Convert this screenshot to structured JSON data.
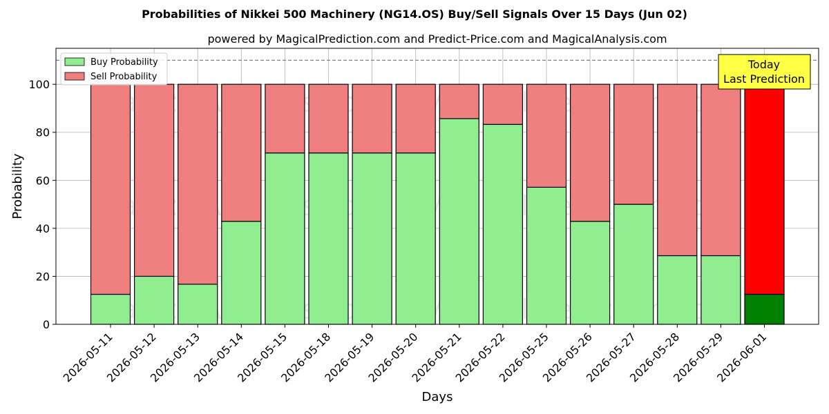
{
  "chart_data": {
    "type": "bar",
    "stacked": true,
    "title": "Probabilities of Nikkei 500 Machinery (NG14.OS) Buy/Sell Signals Over 15 Days (Jun 02)",
    "subtitle": "powered by MagicalPrediction.com and Predict-Price.com and MagicalAnalysis.com",
    "xlabel": "Days",
    "ylabel": "Probability",
    "ylim": [
      0,
      115
    ],
    "yticks": [
      0,
      20,
      40,
      60,
      80,
      100
    ],
    "reference_line": 110,
    "grid": true,
    "legend_position": "top-left",
    "categories": [
      "2026-05-11",
      "2026-05-12",
      "2026-05-13",
      "2026-05-14",
      "2026-05-15",
      "2026-05-18",
      "2026-05-19",
      "2026-05-20",
      "2026-05-21",
      "2026-05-22",
      "2026-05-25",
      "2026-05-26",
      "2026-05-27",
      "2026-05-28",
      "2026-05-29",
      "2026-06-01"
    ],
    "series": [
      {
        "name": "Buy Probability",
        "color": "#90ee90",
        "values": [
          12.5,
          20,
          16.7,
          42.9,
          71.4,
          71.4,
          71.4,
          71.4,
          85.7,
          83.3,
          57.1,
          42.9,
          50,
          28.6,
          28.6,
          12.5
        ]
      },
      {
        "name": "Sell Probability",
        "color": "#f08080",
        "values": [
          87.5,
          80,
          83.3,
          57.1,
          28.6,
          28.6,
          28.6,
          28.6,
          14.3,
          16.7,
          42.9,
          57.1,
          50,
          71.4,
          71.4,
          87.5
        ]
      }
    ],
    "highlight": {
      "index": 15,
      "buy_color": "#008000",
      "sell_color": "#ff0000"
    },
    "annotation": {
      "line1": "Today",
      "line2": "Last Prediction",
      "background": "#ffff44"
    },
    "watermarks": [
      "MagicalAnalysis.com",
      "MagicalPrediction.com"
    ]
  }
}
